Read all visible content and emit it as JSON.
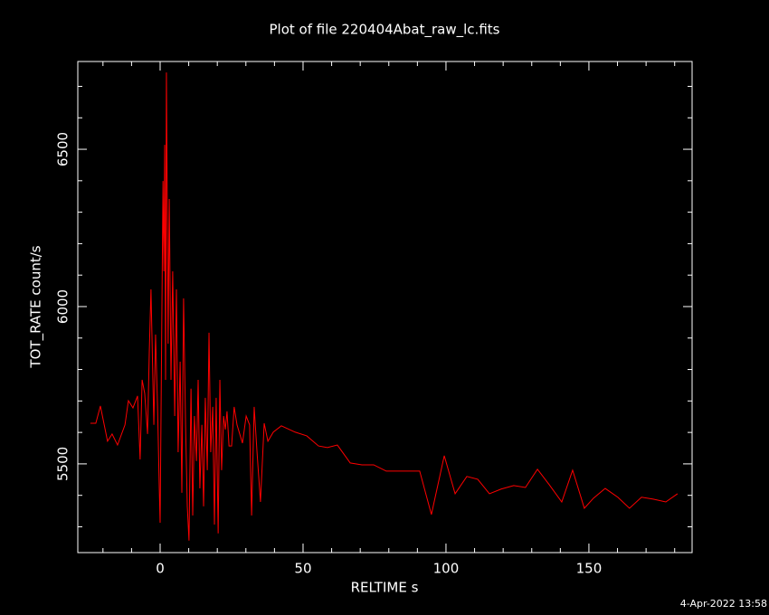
{
  "chart_data": {
    "type": "line",
    "title": "Plot of file 220404Abat_raw_lc.fits",
    "x_label": "RELTIME  s",
    "y_label": "TOT_RATE  count/s",
    "timestamp": "4-Apr-2022 13:58",
    "xlim": [
      -28.8,
      186.1
    ],
    "ylim": [
      5218,
      6779
    ],
    "xticks": [
      0,
      50,
      100,
      150
    ],
    "yticks": [
      5500,
      6000,
      6500
    ],
    "xticks_minor": [
      -20,
      -10,
      10,
      20,
      30,
      40,
      60,
      70,
      80,
      90,
      110,
      120,
      130,
      140,
      160,
      170,
      180
    ],
    "yticks_minor": [
      5300,
      5400,
      5600,
      5700,
      5800,
      5900,
      6100,
      6200,
      6300,
      6400,
      6600,
      6700
    ],
    "series": [
      {
        "color": "#ff0000",
        "x": [
          -24.4,
          -22.5,
          -20.9,
          -18.4,
          -16.8,
          -14.9,
          -12.3,
          -11.1,
          -9.5,
          -7.9,
          -7.0,
          -6.3,
          -5.4,
          -4.4,
          -3.8,
          -3.2,
          -2.2,
          -1.6,
          -0.9,
          -0.3,
          0,
          0.6,
          1.0,
          1.3,
          1.6,
          1.9,
          2.2,
          2.8,
          3.2,
          3.8,
          4.4,
          5.1,
          5.7,
          6.3,
          7.0,
          7.6,
          8.2,
          8.9,
          9.5,
          10.1,
          10.8,
          11.4,
          12.0,
          12.7,
          13.3,
          13.9,
          14.6,
          15.2,
          15.8,
          16.5,
          17.1,
          17.7,
          18.4,
          19.0,
          19.6,
          20.3,
          20.9,
          21.5,
          22.2,
          22.8,
          23.4,
          24.1,
          25.0,
          25.9,
          26.9,
          28.8,
          30.1,
          31.3,
          32.0,
          32.9,
          33.9,
          35.1,
          36.4,
          37.7,
          39.6,
          42.4,
          47.2,
          51.3,
          55.4,
          58.5,
          62.0,
          66.5,
          70.6,
          74.7,
          79.1,
          83.5,
          90.8,
          94.9,
          99.4,
          103.2,
          107.3,
          111.1,
          115.2,
          119.3,
          123.7,
          127.8,
          132.0,
          136.1,
          140.5,
          144.3,
          148.4,
          151.6,
          155.7,
          160.1,
          164.2,
          168.4,
          172.5,
          176.9,
          181.0
        ],
        "values": [
          5629,
          5629,
          5684,
          5572,
          5595,
          5560,
          5624,
          5701,
          5678,
          5716,
          5514,
          5767,
          5724,
          5595,
          5853,
          6055,
          5624,
          5911,
          5681,
          5422,
          5313,
          5968,
          6399,
          6112,
          6514,
          5767,
          6744,
          5882,
          6342,
          5767,
          6112,
          5652,
          6055,
          5537,
          5825,
          5408,
          6026,
          5624,
          5365,
          5256,
          5739,
          5336,
          5652,
          5509,
          5767,
          5422,
          5624,
          5365,
          5710,
          5480,
          5917,
          5537,
          5681,
          5307,
          5710,
          5279,
          5767,
          5480,
          5652,
          5609,
          5667,
          5557,
          5557,
          5681,
          5624,
          5566,
          5652,
          5624,
          5336,
          5681,
          5537,
          5379,
          5629,
          5572,
          5601,
          5621,
          5601,
          5589,
          5557,
          5552,
          5560,
          5503,
          5497,
          5497,
          5477,
          5477,
          5477,
          5339,
          5526,
          5405,
          5460,
          5451,
          5405,
          5420,
          5431,
          5425,
          5483,
          5434,
          5379,
          5480,
          5359,
          5391,
          5422,
          5394,
          5359,
          5394,
          5388,
          5379,
          5405
        ]
      }
    ]
  }
}
